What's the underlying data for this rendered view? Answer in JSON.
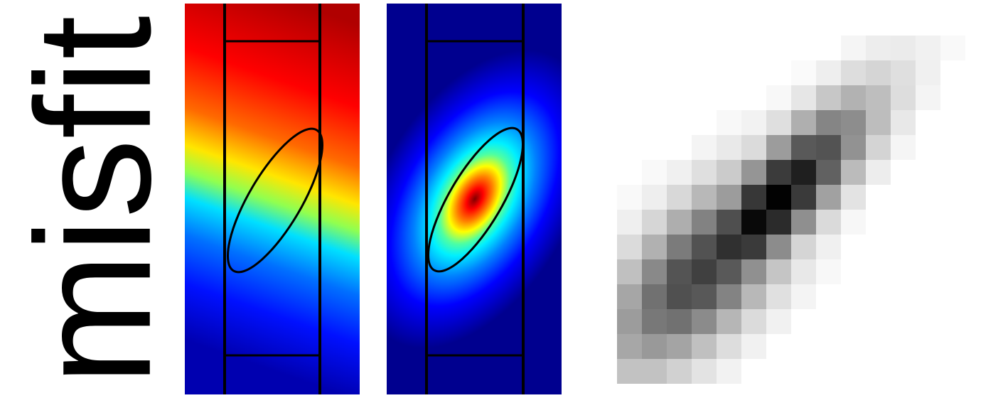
{
  "label": "misfit"
}
